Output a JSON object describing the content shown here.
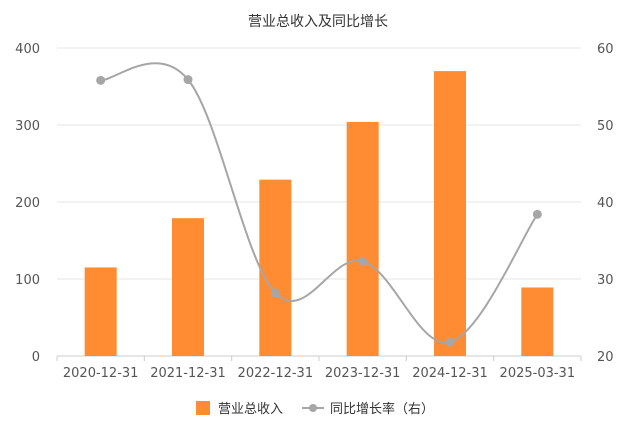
{
  "chart_data": {
    "type": "bar",
    "title": "营业总收入及同比增长",
    "categories": [
      "2020-12-31",
      "2021-12-31",
      "2022-12-31",
      "2023-12-31",
      "2024-12-31",
      "2025-03-31"
    ],
    "series": [
      {
        "name": "营业总收入",
        "type": "bar",
        "axis": "left",
        "color": "#FF8C33",
        "values": [
          115,
          179,
          229,
          304,
          370,
          89
        ]
      },
      {
        "name": "同比增长率（右）",
        "type": "line",
        "axis": "right",
        "color": "#A6A6A6",
        "values": [
          55.8,
          55.9,
          28.2,
          32.3,
          21.8,
          38.4
        ]
      }
    ],
    "y_left": {
      "min": 0,
      "max": 400,
      "ticks": [
        0,
        100,
        200,
        300,
        400
      ]
    },
    "y_right": {
      "min": 20,
      "max": 60,
      "ticks": [
        20,
        30,
        40,
        50,
        60
      ]
    },
    "grid": true,
    "legend_position": "bottom"
  }
}
